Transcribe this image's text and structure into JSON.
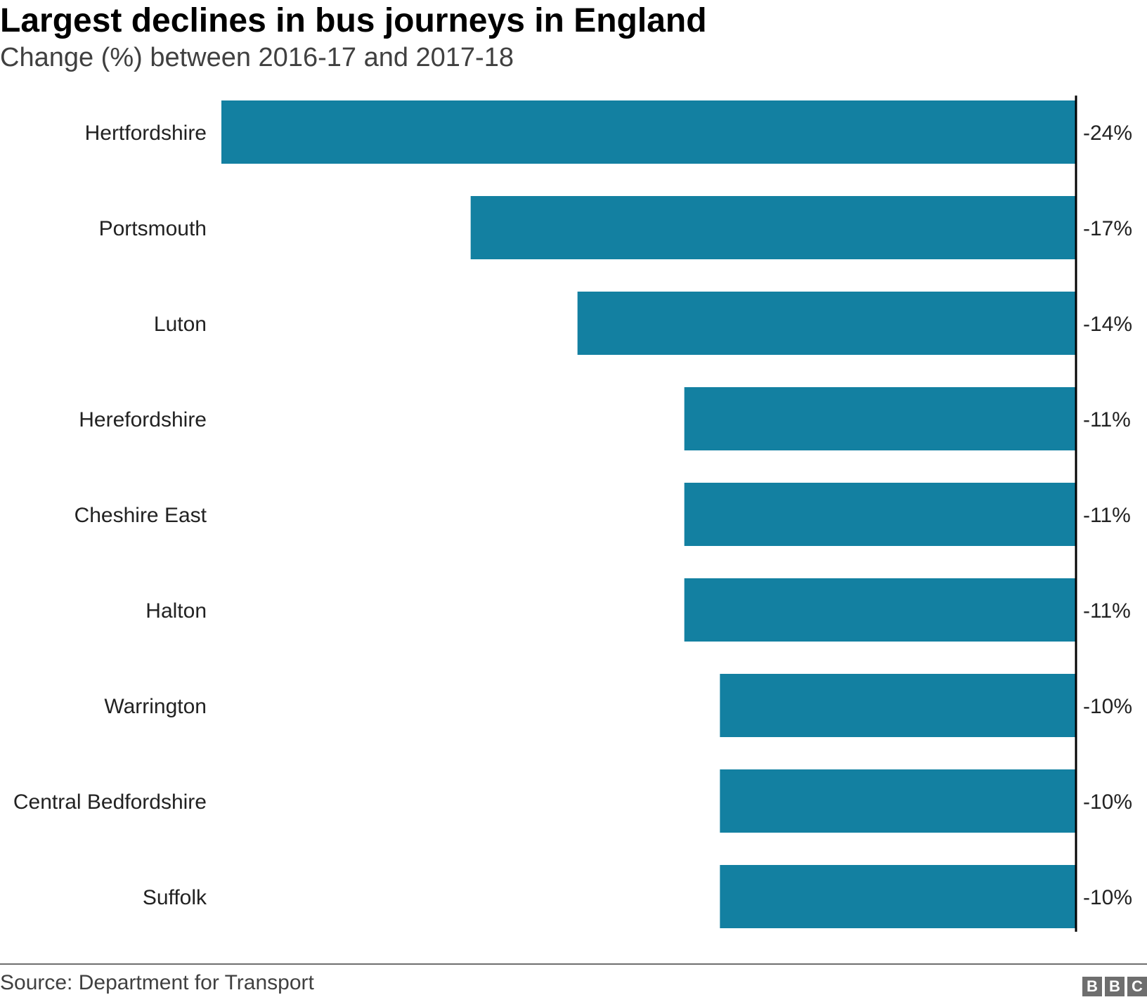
{
  "chart_data": {
    "type": "bar",
    "orientation": "horizontal",
    "title": "Largest declines in bus journeys in England",
    "subtitle": "Change (%) between 2016-17 and 2017-18",
    "categories": [
      "Hertfordshire",
      "Portsmouth",
      "Luton",
      "Herefordshire",
      "Cheshire East",
      "Halton",
      "Warrington",
      "Central Bedfordshire",
      "Suffolk"
    ],
    "values": [
      -24,
      -17,
      -14,
      -11,
      -11,
      -11,
      -10,
      -10,
      -10
    ],
    "value_labels": [
      "-24%",
      "-17%",
      "-14%",
      "-11%",
      "-11%",
      "-11%",
      "-10%",
      "-10%",
      "-10%"
    ],
    "xlim": [
      -24,
      0
    ],
    "grid": false,
    "bar_color": "#1380a1"
  },
  "footer": {
    "source": "Source: Department for Transport",
    "logo": [
      "B",
      "B",
      "C"
    ]
  }
}
